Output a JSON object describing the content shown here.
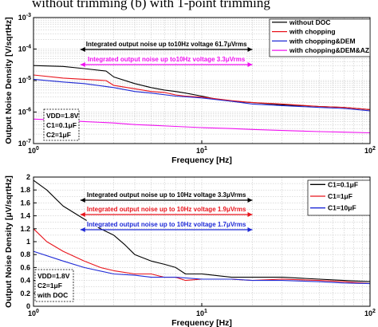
{
  "caption": "without trimming (b) with 1-point trimming",
  "colors": {
    "black": "#000000",
    "red": "#e8141c",
    "blue": "#1f2ad6",
    "magenta": "#f010f0",
    "grid": "#bdbdbd",
    "frame": "#000000"
  },
  "chart_data": [
    {
      "type": "line",
      "xscale": "log",
      "yscale": "log",
      "xlim": [
        1,
        100
      ],
      "ylim": [
        1e-07,
        0.001
      ],
      "xlabel": "Frequency [Hz]",
      "ylabel": "Output Noise Density [V/sqrtHz]",
      "xticks": [
        {
          "v": 1,
          "t": "10"
        },
        {
          "v": 10,
          "t": "10"
        },
        {
          "v": 100,
          "t": "10"
        }
      ],
      "xticks_sup": [
        "0",
        "1",
        "2"
      ],
      "yticks": [
        {
          "v": 1e-07,
          "t": "10"
        },
        {
          "v": 1e-06,
          "t": "10"
        },
        {
          "v": 1e-05,
          "t": "10"
        },
        {
          "v": 0.0001,
          "t": "10"
        },
        {
          "v": 0.001,
          "t": "10"
        }
      ],
      "yticks_sup": [
        "-7",
        "-6",
        "-5",
        "-4",
        "-3"
      ],
      "grid": true,
      "legend_position": "top-right",
      "series": [
        {
          "name": "without DOC",
          "color": "#000000",
          "x": [
            1,
            1.5,
            2,
            2.7,
            3,
            4,
            5,
            6,
            7,
            8,
            10,
            12,
            15,
            20,
            30,
            50,
            70,
            100
          ],
          "y": [
            3e-05,
            2.8e-05,
            2.4e-05,
            2e-05,
            1.3e-05,
            8e-06,
            6e-06,
            5e-06,
            4.5e-06,
            4e-06,
            3.2e-06,
            2.6e-06,
            2.2e-06,
            2e-06,
            1.7e-06,
            1.5e-06,
            1.4e-06,
            1.2e-06
          ]
        },
        {
          "name": "with chopping",
          "color": "#e8141c",
          "x": [
            1,
            1.5,
            2,
            2.7,
            3,
            4,
            5,
            6,
            7,
            8,
            10,
            15,
            20,
            30,
            50,
            70,
            100
          ],
          "y": [
            1.5e-05,
            1.2e-05,
            1.1e-05,
            1e-05,
            7e-06,
            5.5e-06,
            4.5e-06,
            4.2e-06,
            3.5e-06,
            3.2e-06,
            3e-06,
            2.3e-06,
            2e-06,
            1.8e-06,
            1.5e-06,
            1.4e-06,
            1.2e-06
          ]
        },
        {
          "name": "with chopping&DEM",
          "color": "#1f2ad6",
          "x": [
            1,
            1.5,
            2,
            3,
            4,
            5,
            7,
            10,
            15,
            20,
            30,
            50,
            70,
            100
          ],
          "y": [
            1.1e-05,
            9e-06,
            8e-06,
            6e-06,
            4.5e-06,
            4e-06,
            3.2e-06,
            2.8e-06,
            2.2e-06,
            1.8e-06,
            1.6e-06,
            1.4e-06,
            1.3e-06,
            1.1e-06
          ]
        },
        {
          "name": "with chopping&DEM&AZ",
          "color": "#f010f0",
          "x": [
            1,
            1.5,
            2,
            3,
            4,
            5,
            7,
            10,
            15,
            20,
            30,
            50,
            70,
            100
          ],
          "y": [
            6e-07,
            5.5e-07,
            5e-07,
            4.5e-07,
            4e-07,
            3.8e-07,
            3.5e-07,
            3.2e-07,
            3e-07,
            2.8e-07,
            2.6e-07,
            2.4e-07,
            2.3e-07,
            2.2e-07
          ]
        }
      ],
      "annotations": [
        {
          "text": "Integrated output noise up to10Hz voltage 61.7μVrms",
          "color": "#000000"
        },
        {
          "text": "Integrated output noise up to10Hz voltage 3.3μVrms",
          "color": "#f010f0"
        }
      ],
      "conditions": [
        "VDD=1.8V",
        "C1=0.1μF",
        "C2=1μF"
      ]
    },
    {
      "type": "line",
      "xscale": "log",
      "yscale": "linear",
      "xlim": [
        1,
        100
      ],
      "ylim": [
        0,
        2
      ],
      "xlabel": "Frequency [Hz]",
      "ylabel": "Output Noise Density [μV/sqrtHz]",
      "xticks": [
        {
          "v": 1,
          "t": "10"
        },
        {
          "v": 10,
          "t": "10"
        },
        {
          "v": 100,
          "t": "10"
        }
      ],
      "xticks_sup": [
        "0",
        "1",
        "2"
      ],
      "yticks": [
        {
          "v": 0,
          "t": "0"
        },
        {
          "v": 0.2,
          "t": "0.2"
        },
        {
          "v": 0.4,
          "t": "0.4"
        },
        {
          "v": 0.6,
          "t": "0.6"
        },
        {
          "v": 0.8,
          "t": "0.8"
        },
        {
          "v": 1.0,
          "t": "1"
        },
        {
          "v": 1.2,
          "t": "1.2"
        },
        {
          "v": 1.4,
          "t": "1.4"
        },
        {
          "v": 1.6,
          "t": "1.6"
        },
        {
          "v": 1.8,
          "t": "1.8"
        },
        {
          "v": 2.0,
          "t": "2"
        }
      ],
      "grid": true,
      "legend_position": "top-right",
      "series": [
        {
          "name": "C1=0.1μF",
          "color": "#000000",
          "x": [
            1,
            1.2,
            1.5,
            2,
            2.5,
            3,
            3.5,
            4,
            5,
            6,
            7,
            8,
            10,
            15,
            20,
            30,
            50,
            70,
            100
          ],
          "y": [
            1.95,
            1.8,
            1.55,
            1.35,
            1.2,
            1.1,
            0.95,
            0.8,
            0.7,
            0.65,
            0.6,
            0.5,
            0.5,
            0.45,
            0.45,
            0.45,
            0.42,
            0.4,
            0.38
          ]
        },
        {
          "name": "C1=1μF",
          "color": "#e8141c",
          "x": [
            1,
            1.2,
            1.5,
            2,
            2.5,
            3,
            4,
            5,
            6,
            7,
            8,
            10,
            15,
            20,
            30,
            50,
            70,
            100
          ],
          "y": [
            1.2,
            1.0,
            0.85,
            0.7,
            0.6,
            0.55,
            0.5,
            0.5,
            0.45,
            0.45,
            0.4,
            0.42,
            0.42,
            0.4,
            0.42,
            0.4,
            0.38,
            0.35
          ]
        },
        {
          "name": "C1=10μF",
          "color": "#1f2ad6",
          "x": [
            1,
            1.5,
            2,
            3,
            4,
            5,
            7,
            10,
            15,
            20,
            30,
            50,
            70,
            100
          ],
          "y": [
            0.85,
            0.7,
            0.6,
            0.5,
            0.48,
            0.45,
            0.45,
            0.42,
            0.42,
            0.4,
            0.4,
            0.38,
            0.36,
            0.35
          ]
        }
      ],
      "annotations": [
        {
          "text": "Integrated output noise up to 10Hz voltage 3.3μVrms",
          "color": "#000000"
        },
        {
          "text": "Integrated output noise up to 10Hz voltage 1.9μVrms",
          "color": "#e8141c"
        },
        {
          "text": "Integrated output noise up to 10Hz voltage 1.7μVrms",
          "color": "#1f2ad6"
        }
      ],
      "conditions": [
        "VDD=1.8V",
        "C2=1μF",
        "with DOC"
      ]
    }
  ]
}
